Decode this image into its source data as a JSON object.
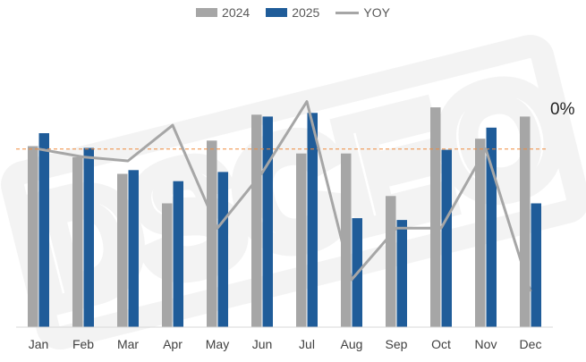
{
  "chart_data": {
    "type": "bar",
    "categories": [
      "Jan",
      "Feb",
      "Mar",
      "Apr",
      "May",
      "Jun",
      "Jul",
      "Aug",
      "Sep",
      "Oct",
      "Nov",
      "Dec"
    ],
    "series": [
      {
        "name": "2024",
        "type": "bar",
        "color": "#a6a6a6",
        "values": [
          98,
          92,
          83,
          67,
          101,
          115,
          94,
          94,
          71,
          119,
          102,
          114
        ]
      },
      {
        "name": "2025",
        "type": "bar",
        "color": "#1f5c99",
        "values": [
          105,
          97,
          85,
          79,
          84,
          114,
          116,
          59,
          58,
          96,
          108,
          67
        ]
      },
      {
        "name": "YOY",
        "type": "line",
        "color": "#a6a6a6",
        "axis": "secondary",
        "values": [
          0,
          -2,
          -3,
          6,
          -20,
          -6,
          12,
          -33,
          -20,
          -20,
          0,
          -36
        ]
      }
    ],
    "ylim": [
      0,
      150
    ],
    "y2lim": [
      -45,
      25
    ],
    "reference_line": {
      "value": 0,
      "axis": "secondary",
      "label": "0%",
      "color": "#f08a3c",
      "style": "dashed"
    },
    "legend": {
      "position": "top"
    },
    "watermark": "DSCEO",
    "title": "",
    "xlabel": "",
    "ylabel": ""
  }
}
